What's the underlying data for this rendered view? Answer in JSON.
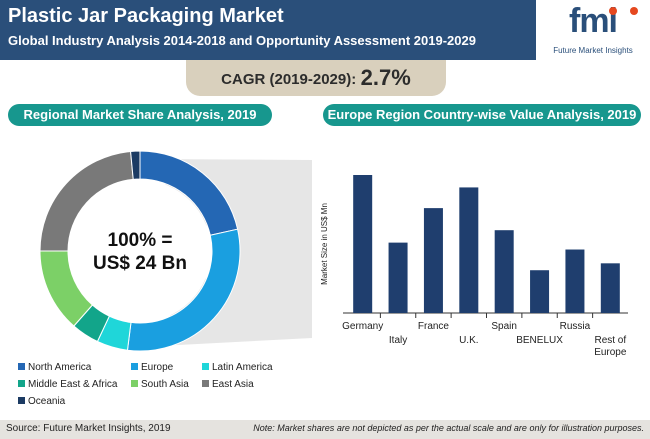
{
  "header": {
    "title": "Plastic Jar Packaging Market",
    "subtitle": "Global Industry Analysis 2014-2018 and Opportunity Assessment 2019-2029",
    "logo_text": "fmi",
    "logo_sub": "Future Market Insights"
  },
  "cagr": {
    "label": "CAGR (2019-2029):",
    "value": "2.7%"
  },
  "left_panel": {
    "title": "Regional Market Share Analysis, 2019",
    "center_line1": "100% =",
    "center_line2": "US$ 24 Bn"
  },
  "right_panel": {
    "title": "Europe Region Country-wise Value Analysis, 2019"
  },
  "footer": {
    "source": "Source: Future Market Insights, 2019",
    "note": "Note: Market shares are not depicted as per the actual scale and are only for illustration purposes."
  },
  "colors": {
    "header": "#2a4f7a",
    "teal": "#17978e",
    "bar": "#1f3e6e",
    "North America": "#2467b4",
    "Europe": "#1a9fe0",
    "Latin America": "#1fd6d9",
    "Middle East & Africa": "#12a58a",
    "South Asia": "#7cd067",
    "East Asia": "#797979",
    "Oceania": "#1c3b63"
  },
  "chart_data": [
    {
      "type": "pie",
      "categories": [
        "North America",
        "Europe",
        "Latin America",
        "Middle East & Africa",
        "South Asia",
        "East Asia",
        "Oceania"
      ],
      "values": [
        21.5,
        30.5,
        5,
        4.5,
        13.5,
        23.5,
        1.5
      ]
    },
    {
      "type": "bar",
      "categories": [
        "Germany",
        "Italy",
        "France",
        "U.K.",
        "Spain",
        "BENELUX",
        "Russia",
        "Rest of Europe"
      ],
      "category_lines": [
        [
          "Germany"
        ],
        [
          "Italy"
        ],
        [
          "France"
        ],
        [
          "U.K."
        ],
        [
          "Spain"
        ],
        [
          "BENELUX"
        ],
        [
          "Russia"
        ],
        [
          "Rest of",
          "Europe"
        ]
      ],
      "values": [
        100,
        51,
        76,
        91,
        60,
        31,
        46,
        36
      ],
      "ylabel": "Market Size in US$ Mn",
      "ylim": [
        0,
        100
      ]
    }
  ]
}
